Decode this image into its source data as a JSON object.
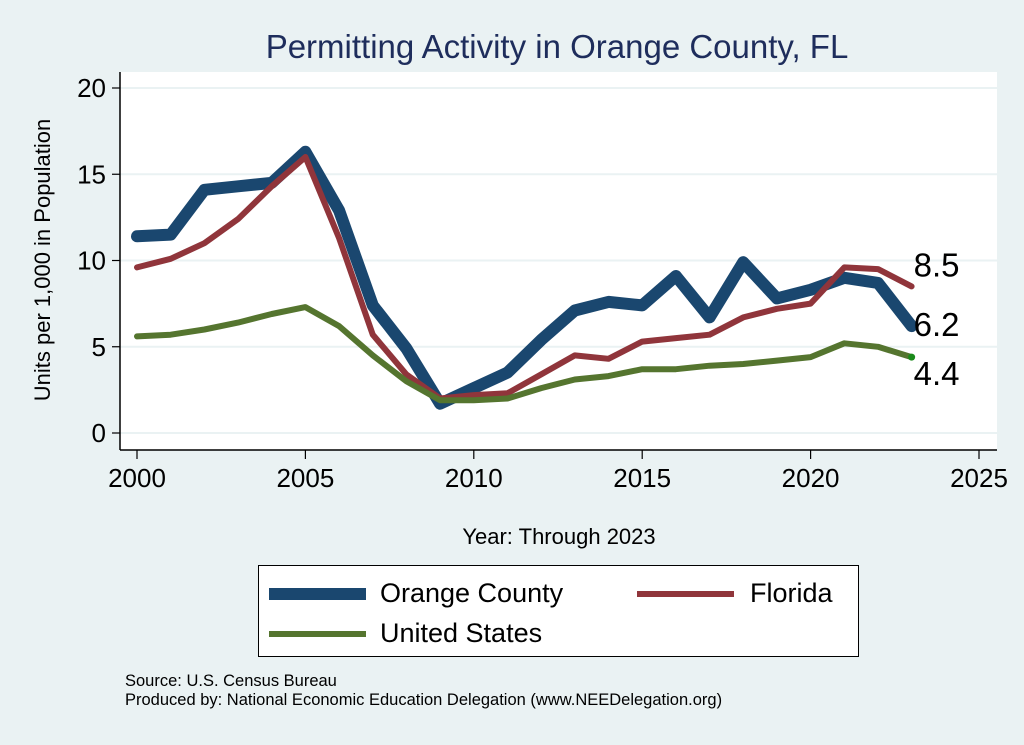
{
  "chart_data": {
    "type": "line",
    "title": "Permitting Activity in Orange County, FL",
    "xlabel": "Year: Through 2023",
    "ylabel": "Units per 1,000 in Population",
    "xlim": [
      2000,
      2025
    ],
    "ylim": [
      0,
      20
    ],
    "xticks": [
      2000,
      2005,
      2010,
      2015,
      2020,
      2025
    ],
    "yticks": [
      0,
      5,
      10,
      15,
      20
    ],
    "grid": true,
    "legend_position": "bottom",
    "x": [
      2000,
      2001,
      2002,
      2003,
      2004,
      2005,
      2006,
      2007,
      2008,
      2009,
      2010,
      2011,
      2012,
      2013,
      2014,
      2015,
      2016,
      2017,
      2018,
      2019,
      2020,
      2021,
      2022,
      2023
    ],
    "series": [
      {
        "name": "Orange County",
        "color": "#1a476f",
        "values": [
          11.4,
          11.5,
          14.1,
          14.3,
          14.5,
          16.3,
          12.9,
          7.4,
          4.9,
          1.7,
          2.6,
          3.5,
          5.4,
          7.1,
          7.6,
          7.4,
          9.1,
          6.7,
          9.9,
          7.8,
          8.3,
          9.0,
          8.7,
          6.2
        ],
        "end_label": "6.2"
      },
      {
        "name": "Florida",
        "color": "#90353b",
        "values": [
          9.6,
          10.1,
          11.0,
          12.4,
          14.3,
          16.0,
          11.3,
          5.7,
          3.4,
          2.0,
          2.2,
          2.3,
          3.4,
          4.5,
          4.3,
          5.3,
          5.5,
          5.7,
          6.7,
          7.2,
          7.5,
          9.6,
          9.5,
          8.5
        ],
        "end_label": "8.5"
      },
      {
        "name": "United States",
        "color": "#55752f",
        "values": [
          5.6,
          5.7,
          6.0,
          6.4,
          6.9,
          7.3,
          6.2,
          4.5,
          3.0,
          1.9,
          1.9,
          2.0,
          2.6,
          3.1,
          3.3,
          3.7,
          3.7,
          3.9,
          4.0,
          4.2,
          4.4,
          5.2,
          5.0,
          4.4
        ],
        "end_label": "4.4"
      }
    ]
  },
  "legend": {
    "items": [
      {
        "label": "Orange County"
      },
      {
        "label": "Florida"
      },
      {
        "label": "United States"
      }
    ]
  },
  "footer": {
    "source": "Source: U.S. Census Bureau",
    "produced_by": "Produced by: National Economic Education Delegation (www.NEEDelegation.org)"
  },
  "colors": {
    "background": "#eaf2f3",
    "title": "#1e2d5c",
    "plot_background": "#ffffff",
    "gridline": "#eaf2f3"
  }
}
